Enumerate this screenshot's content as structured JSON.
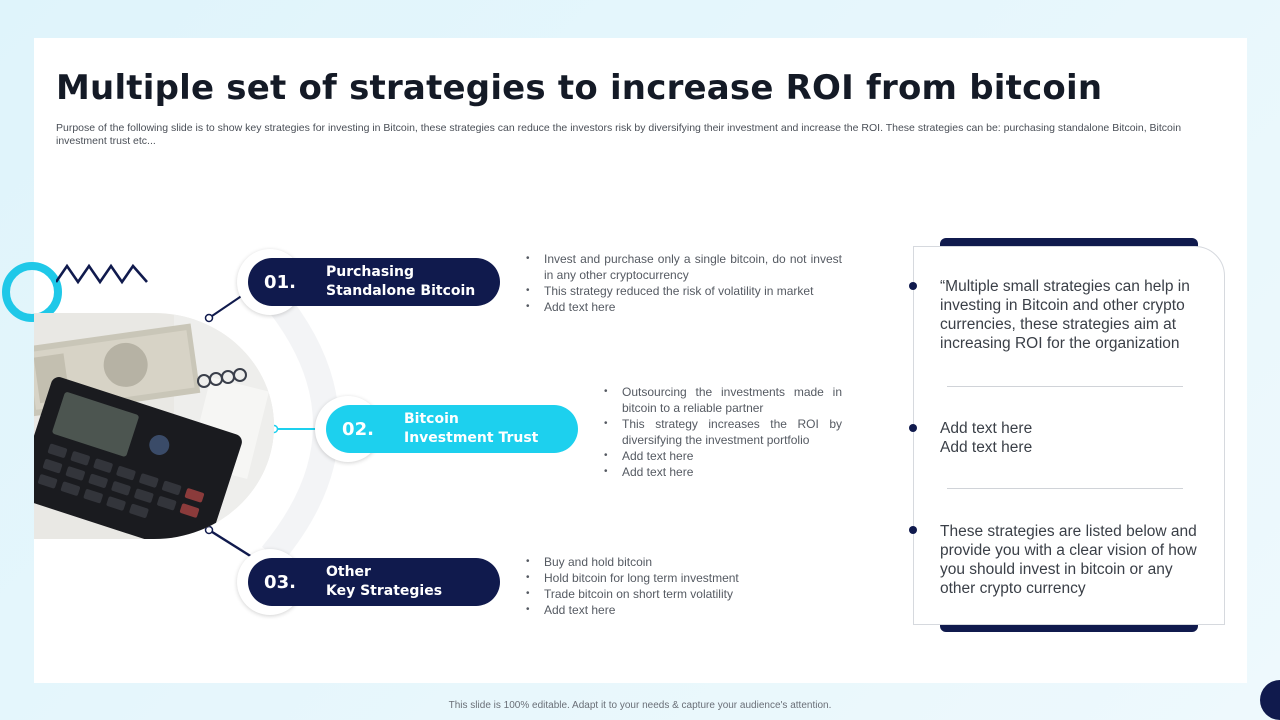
{
  "title": "Multiple set of strategies to increase ROI from bitcoin",
  "subtitle": "Purpose of the following slide is to show key strategies for investing in Bitcoin, these strategies can reduce the investors risk by diversifying their investment and increase the ROI. These strategies can be: purchasing standalone Bitcoin, Bitcoin investment trust etc...",
  "strategies": [
    {
      "number": "01.",
      "label_line1": "Purchasing",
      "label_line2": "Standalone Bitcoin",
      "bullets": [
        "Invest and purchase only a single bitcoin, do not invest in any other cryptocurrency",
        "This strategy reduced the risk of volatility in market",
        "Add text here"
      ]
    },
    {
      "number": "02.",
      "label_line1": "Bitcoin",
      "label_line2": "Investment Trust",
      "bullets": [
        "Outsourcing the investments made in bitcoin to a reliable partner",
        "This strategy increases the ROI by diversifying the investment portfolio",
        "Add text here",
        "Add text here"
      ]
    },
    {
      "number": "03.",
      "label_line1": "Other",
      "label_line2": "Key Strategies",
      "bullets": [
        "Buy and hold bitcoin",
        "Hold bitcoin for long term investment",
        "Trade bitcoin on short term volatility",
        "Add text here"
      ]
    }
  ],
  "notes": [
    "“Multiple small strategies can help in investing in Bitcoin and other crypto currencies, these strategies aim at increasing ROI for the organization",
    "Add text here\nAdd text here",
    "These strategies are listed below and provide you with a clear vision of how you should invest in bitcoin or any other crypto currency"
  ],
  "footer": "This slide is 100% editable. Adapt it to your needs & capture your audience's attention.",
  "colors": {
    "navy": "#101a4d",
    "cyan": "#1dd0ee"
  }
}
